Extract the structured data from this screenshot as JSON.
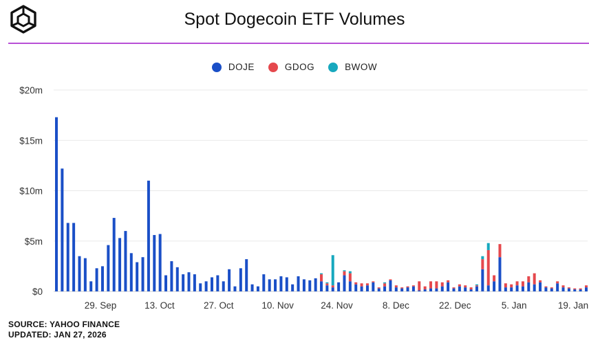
{
  "header": {
    "title": "Spot Dogecoin ETF Volumes",
    "logo_icon": "cube-logo-icon"
  },
  "footer": {
    "source": "SOURCE: YAHOO FINANCE",
    "updated": "UPDATED: JAN 27, 2026"
  },
  "colors": {
    "DOJE": "#1a4fc7",
    "GDOG": "#e5484d",
    "BWOW": "#17a8be",
    "accent": "#b84fd6",
    "grid": "#e9e9e9"
  },
  "chart_data": {
    "type": "bar",
    "stacked": true,
    "title": "Spot Dogecoin ETF Volumes",
    "xlabel": "",
    "ylabel": "",
    "ylim": [
      0,
      20
    ],
    "y_unit": "million USD",
    "y_ticks": [
      {
        "value": 0,
        "label": "$0"
      },
      {
        "value": 5,
        "label": "$5m"
      },
      {
        "value": 10,
        "label": "$10m"
      },
      {
        "value": 15,
        "label": "$15m"
      },
      {
        "value": 20,
        "label": "$20m"
      }
    ],
    "x_ticks": [
      "29. Sep",
      "13. Oct",
      "27. Oct",
      "10. Nov",
      "24. Nov",
      "8. Dec",
      "22. Dec",
      "5. Jan",
      "19. Jan"
    ],
    "legend_position": "top-center",
    "grid": true,
    "series": [
      {
        "name": "DOJE",
        "values": [
          17.3,
          12.2,
          6.8,
          6.8,
          3.5,
          3.3,
          1.0,
          2.3,
          2.5,
          4.6,
          7.3,
          5.3,
          6.0,
          3.8,
          2.9,
          3.4,
          11.0,
          5.6,
          5.7,
          1.6,
          3.0,
          2.4,
          1.7,
          1.9,
          1.7,
          0.8,
          1.0,
          1.4,
          1.6,
          1.0,
          2.2,
          0.5,
          2.3,
          3.2,
          0.7,
          0.5,
          1.7,
          1.2,
          1.2,
          1.5,
          1.4,
          0.7,
          1.5,
          1.2,
          1.1,
          1.3,
          1.0,
          0.6,
          0.4,
          0.9,
          1.6,
          1.0,
          0.7,
          0.5,
          0.6,
          0.9,
          0.3,
          0.5,
          1.1,
          0.4,
          0.3,
          0.4,
          0.5,
          0.1,
          0.2,
          0.3,
          0.3,
          0.5,
          0.9,
          0.3,
          0.5,
          0.4,
          0.2,
          0.5,
          2.2,
          0.6,
          1.0,
          3.4,
          0.4,
          0.4,
          0.6,
          0.5,
          0.9,
          0.7,
          0.9,
          0.4,
          0.3,
          0.8,
          0.4,
          0.3,
          0.2,
          0.2,
          0.4
        ]
      },
      {
        "name": "GDOG",
        "values": [
          0,
          0,
          0,
          0,
          0,
          0,
          0,
          0,
          0,
          0,
          0,
          0,
          0,
          0,
          0,
          0,
          0,
          0,
          0,
          0,
          0,
          0,
          0,
          0,
          0,
          0,
          0,
          0,
          0,
          0,
          0,
          0,
          0,
          0,
          0,
          0,
          0,
          0,
          0,
          0,
          0,
          0,
          0,
          0,
          0,
          0,
          0.7,
          0.2,
          0.2,
          0,
          0.4,
          0.8,
          0.2,
          0.3,
          0.2,
          0.1,
          0.1,
          0.3,
          0.1,
          0.2,
          0.1,
          0.1,
          0.1,
          0.9,
          0.3,
          0.7,
          0.7,
          0.4,
          0.2,
          0.1,
          0.2,
          0.2,
          0.2,
          0.1,
          1.0,
          3.5,
          0.6,
          1.3,
          0.4,
          0.3,
          0.4,
          0.5,
          0.6,
          1.1,
          0.2,
          0.1,
          0.1,
          0.2,
          0.2,
          0.1,
          0.1,
          0.1,
          0.2
        ]
      },
      {
        "name": "BWOW",
        "values": [
          0,
          0,
          0,
          0,
          0,
          0,
          0,
          0,
          0,
          0,
          0,
          0,
          0,
          0,
          0,
          0,
          0,
          0,
          0,
          0,
          0,
          0,
          0,
          0,
          0,
          0,
          0,
          0,
          0,
          0,
          0,
          0,
          0,
          0,
          0,
          0,
          0,
          0,
          0,
          0,
          0,
          0,
          0,
          0,
          0,
          0,
          0.1,
          0.1,
          3.0,
          0,
          0.1,
          0.2,
          0,
          0,
          0,
          0,
          0,
          0.1,
          0,
          0,
          0,
          0,
          0,
          0,
          0,
          0,
          0,
          0,
          0,
          0,
          0,
          0,
          0,
          0.1,
          0.3,
          0.7,
          0,
          0,
          0,
          0,
          0,
          0,
          0,
          0,
          0,
          0,
          0,
          0,
          0,
          0,
          0,
          0,
          0
        ]
      }
    ]
  }
}
